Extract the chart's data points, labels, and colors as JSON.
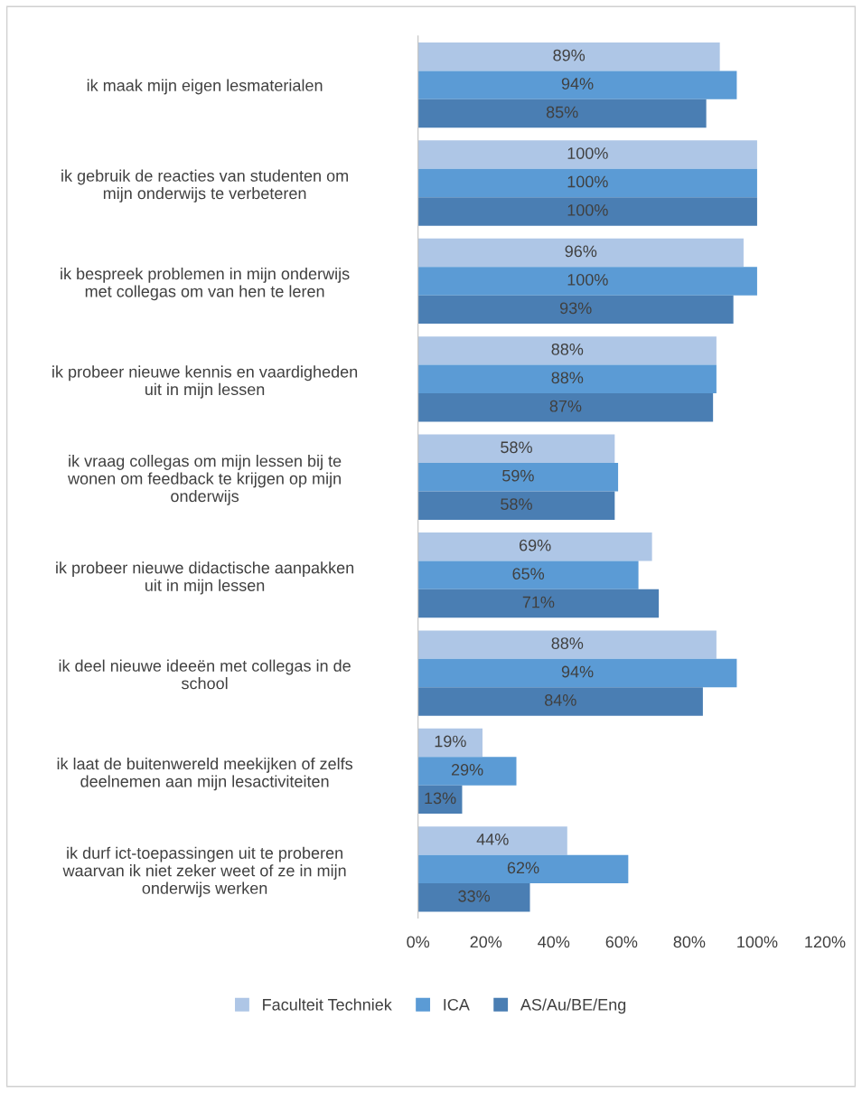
{
  "chart_data": {
    "type": "bar",
    "orientation": "horizontal",
    "categories": [
      "ik maak mijn eigen lesmaterialen",
      "ik gebruik de reacties van studenten om\nmijn onderwijs te verbeteren",
      "ik bespreek problemen in mijn onderwijs\nmet collegas om van hen te leren",
      "ik probeer nieuwe kennis en vaardigheden\nuit in mijn lessen",
      "ik vraag collegas om mijn lessen bij te\nwonen om feedback te krijgen op mijn\nonderwijs",
      "ik probeer nieuwe didactische aanpakken\nuit in mijn lessen",
      "ik deel nieuwe ideeën met collegas in de\nschool",
      "ik laat de buitenwereld meekijken of zelfs\ndeelnemen aan mijn lesactiviteiten",
      "ik durf ict-toepassingen uit te proberen\nwaarvan ik niet zeker weet of ze in mijn\nonderwijs werken"
    ],
    "series": [
      {
        "name": "Faculteit Techniek",
        "color": "#aec6e6",
        "values": [
          89,
          100,
          96,
          88,
          58,
          69,
          88,
          19,
          44
        ],
        "value_labels": [
          "89%",
          "100%",
          "96%",
          "88%",
          "58%",
          "69%",
          "88%",
          "19%",
          "44%"
        ]
      },
      {
        "name": "ICA",
        "color": "#5b9bd5",
        "values": [
          94,
          100,
          100,
          88,
          59,
          65,
          94,
          29,
          62
        ],
        "value_labels": [
          "94%",
          "100%",
          "100%",
          "88%",
          "59%",
          "65%",
          "94%",
          "29%",
          "62%"
        ]
      },
      {
        "name": "AS/Au/BE/Eng",
        "color": "#4a7eb3",
        "values": [
          85,
          100,
          93,
          87,
          58,
          71,
          84,
          13,
          33
        ],
        "value_labels": [
          "85%",
          "100%",
          "93%",
          "87%",
          "58%",
          "71%",
          "84%",
          "13%",
          "33%"
        ]
      }
    ],
    "xlim": [
      0,
      120
    ],
    "xticks": [
      {
        "value": 0,
        "label": "0%"
      },
      {
        "value": 20,
        "label": "20%"
      },
      {
        "value": 40,
        "label": "40%"
      },
      {
        "value": 60,
        "label": "60%"
      },
      {
        "value": 80,
        "label": "80%"
      },
      {
        "value": 100,
        "label": "100%"
      },
      {
        "value": 120,
        "label": "120%"
      }
    ],
    "legend": "bottom",
    "grid": false
  }
}
